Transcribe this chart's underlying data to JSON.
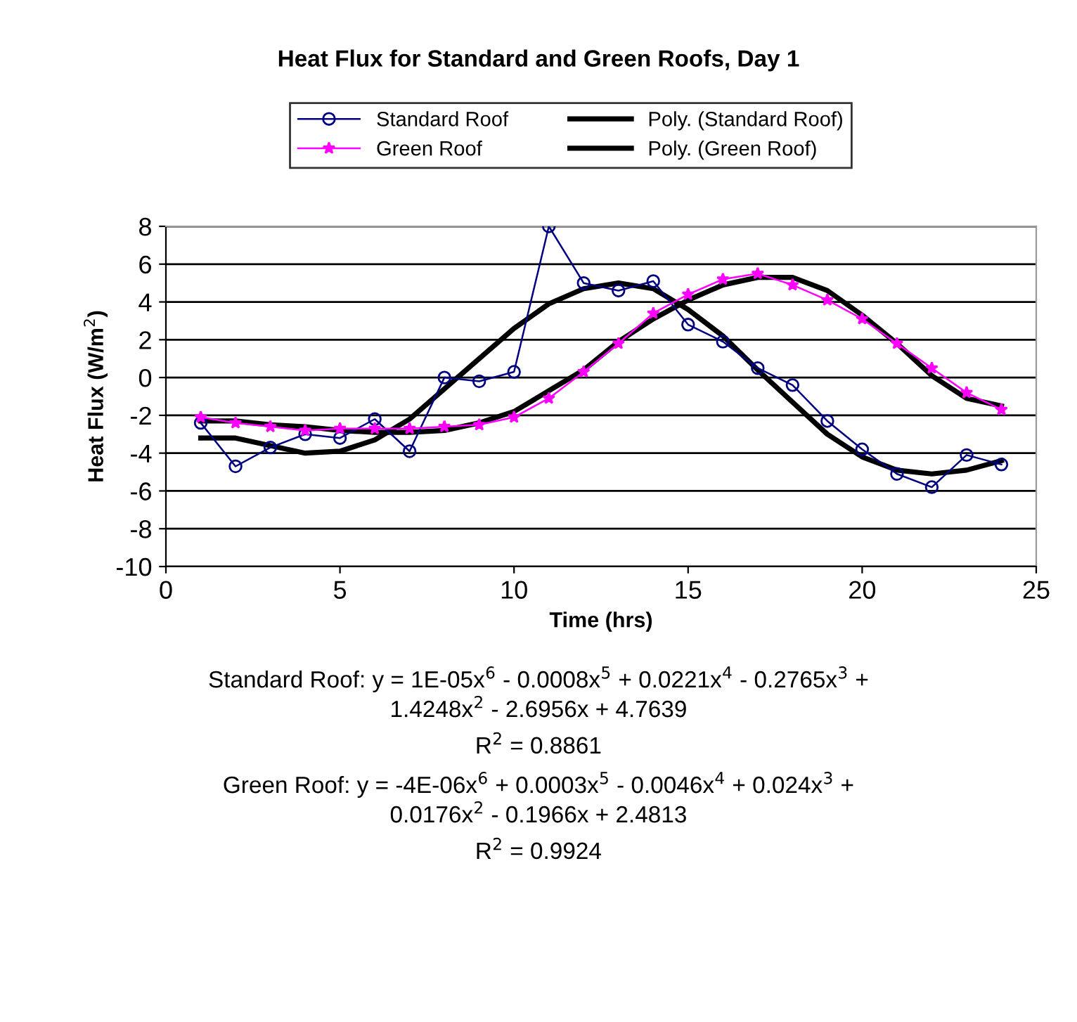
{
  "chart_data": {
    "type": "line",
    "title": "Heat Flux for Standard and Green Roofs, Day 1",
    "xlabel": "Time (hrs)",
    "ylabel": "Heat Flux (W/m$^{2}$)",
    "x": [
      1,
      2,
      3,
      4,
      5,
      6,
      7,
      8,
      9,
      10,
      11,
      12,
      13,
      14,
      15,
      16,
      17,
      18,
      19,
      20,
      21,
      22,
      23,
      24
    ],
    "series": [
      {
        "name": "Standard Roof",
        "color": "#000080",
        "marker": "circle",
        "values": [
          -2.4,
          -4.7,
          -3.7,
          -3.0,
          -3.2,
          -2.2,
          -3.9,
          0.0,
          -0.2,
          0.3,
          8.0,
          5.0,
          4.6,
          5.1,
          2.8,
          1.9,
          0.5,
          -0.4,
          -2.3,
          -3.8,
          -5.1,
          -5.8,
          -4.1,
          -4.6
        ]
      },
      {
        "name": "Green Roof",
        "color": "#ff00ff",
        "marker": "star",
        "values": [
          -2.1,
          -2.4,
          -2.6,
          -2.8,
          -2.7,
          -2.7,
          -2.7,
          -2.6,
          -2.5,
          -2.1,
          -1.1,
          0.3,
          1.8,
          3.4,
          4.4,
          5.2,
          5.5,
          4.9,
          4.1,
          3.1,
          1.8,
          0.5,
          -0.8,
          -1.7
        ]
      },
      {
        "name": "Poly. (Standard Roof)",
        "color": "#000000",
        "marker": "none",
        "values": [
          -3.2,
          -3.2,
          -3.6,
          -4.0,
          -3.9,
          -3.3,
          -2.2,
          -0.6,
          1.0,
          2.6,
          3.9,
          4.7,
          5.0,
          4.7,
          3.6,
          2.2,
          0.4,
          -1.3,
          -3.0,
          -4.2,
          -4.9,
          -5.1,
          -4.9,
          -4.4
        ]
      },
      {
        "name": "Poly. (Green Roof)",
        "color": "#000000",
        "marker": "none",
        "values": [
          -2.3,
          -2.3,
          -2.5,
          -2.6,
          -2.8,
          -2.9,
          -2.9,
          -2.8,
          -2.4,
          -1.8,
          -0.7,
          0.4,
          1.9,
          3.1,
          4.1,
          4.9,
          5.3,
          5.3,
          4.6,
          3.3,
          1.8,
          0.1,
          -1.1,
          -1.5
        ]
      }
    ],
    "xlim": [
      0,
      25
    ],
    "xticks": [
      0,
      5,
      10,
      15,
      20,
      25
    ],
    "ylim": [
      -10,
      8
    ],
    "yticks": [
      -10,
      -8,
      -6,
      -4,
      -2,
      0,
      2,
      4,
      6,
      8
    ],
    "grid": "y",
    "legend": "top",
    "line_style": "solid",
    "annotations": [
      "Standard Roof: y = 1E-05x$^{6}$ - 0.0008x$^{5}$ + 0.0221x$^{4}$ - 0.2765x$^{3}$ +\n1.4248x$^{2}$ - 2.6956x + 4.7639",
      "R$^{2}$ = 0.8861",
      "Green Roof: y = -4E-06x$^{6}$ + 0.0003x$^{5}$ - 0.0046x$^{4}$ + 0.024x$^{3}$ +\n0.0176x$^{2}$ - 0.1966x + 2.4813",
      "R$^{2}$ = 0.9924"
    ]
  }
}
